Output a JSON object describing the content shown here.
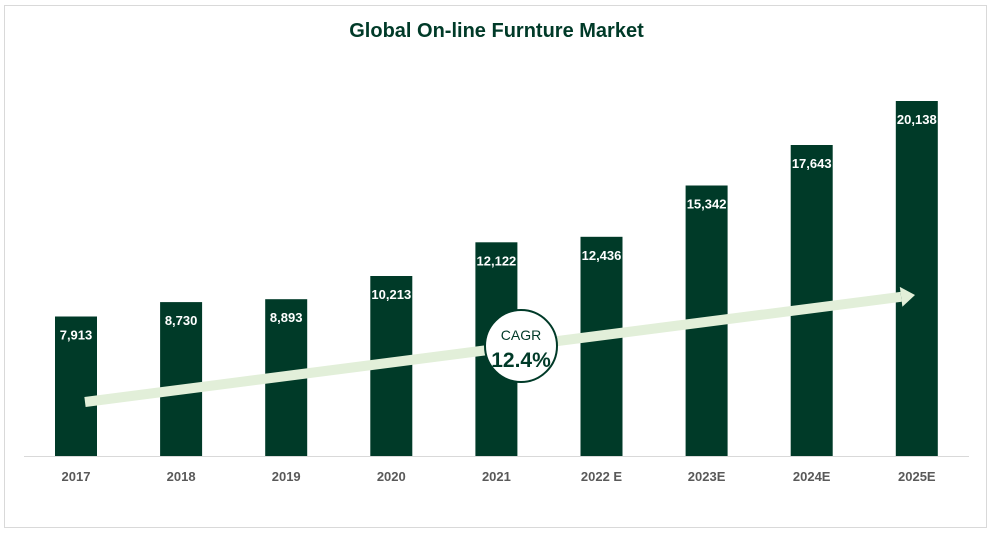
{
  "chart_data": {
    "type": "bar",
    "title": "Global On-line Furnture Market",
    "categories": [
      "2017",
      "2018",
      "2019",
      "2020",
      "2021",
      "2022 E",
      "2023E",
      "2024E",
      "2025E"
    ],
    "values": [
      7913,
      8730,
      8893,
      10213,
      12122,
      12436,
      15342,
      17643,
      20138
    ],
    "value_labels": [
      "7,913",
      "8,730",
      "8,893",
      "10,213",
      "12,122",
      "12,436",
      "15,342",
      "17,643",
      "20,138"
    ],
    "ylim": [
      0,
      20138
    ],
    "grid": false,
    "legend": "none",
    "bar_color": "#003a28",
    "annotation": {
      "caption": "CAGR",
      "value": "12.4%",
      "arrow_color": "#e2efd9"
    }
  }
}
